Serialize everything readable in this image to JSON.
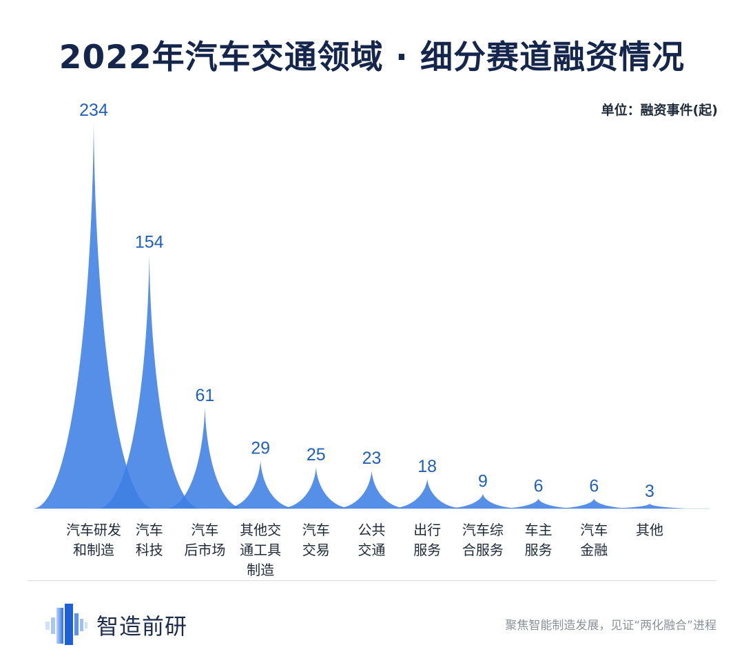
{
  "header": {
    "title": "2022年汽车交通领域 · 细分赛道融资情况",
    "unit": "单位：融资事件(起)"
  },
  "colors": {
    "title": "#15264d",
    "spike": "#3f7fe4",
    "value_label": "#1f5fbf",
    "category_label": "#1e2a3a"
  },
  "chart_data": {
    "type": "area",
    "categories": [
      [
        "汽车研发",
        "和制造"
      ],
      [
        "汽车",
        "科技"
      ],
      [
        "汽车",
        "后市场"
      ],
      [
        "其他交",
        "通工具",
        "制造"
      ],
      [
        "汽车",
        "交易"
      ],
      [
        "公共",
        "交通"
      ],
      [
        "出行",
        "服务"
      ],
      [
        "汽车综",
        "合服务"
      ],
      [
        "车主",
        "服务"
      ],
      [
        "汽车",
        "金融"
      ],
      [
        "其他"
      ]
    ],
    "values": [
      234,
      154,
      61,
      29,
      25,
      23,
      18,
      9,
      6,
      6,
      3
    ],
    "ylim": [
      0,
      234
    ],
    "grid": false,
    "legend": "none"
  },
  "footer": {
    "brand": "智造前研",
    "slogan": "聚焦智能制造发展，见证“两化融合”进程"
  }
}
